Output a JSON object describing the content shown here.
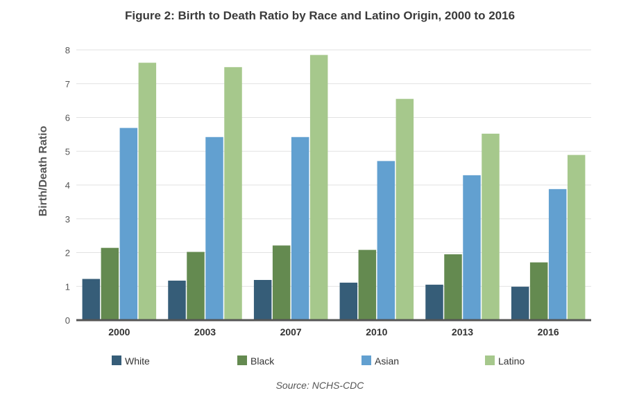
{
  "chart_data": {
    "type": "bar",
    "title": "Figure 2: Birth to Death Ratio by Race and Latino Origin, 2000 to 2016",
    "xlabel": "",
    "ylabel": "Birth/Death Ratio",
    "ylim": [
      0,
      8
    ],
    "yticks": [
      "0",
      "1",
      "2",
      "3",
      "4",
      "5",
      "6",
      "7",
      "8"
    ],
    "grid": true,
    "legend_position": "bottom",
    "categories": [
      "2000",
      "2003",
      "2007",
      "2010",
      "2013",
      "2016"
    ],
    "series": [
      {
        "name": "White",
        "color": "#365d78",
        "values": [
          1.22,
          1.17,
          1.19,
          1.11,
          1.05,
          0.99
        ]
      },
      {
        "name": "Black",
        "color": "#648a50",
        "values": [
          2.14,
          2.02,
          2.21,
          2.08,
          1.95,
          1.71
        ]
      },
      {
        "name": "Asian",
        "color": "#62a0d0",
        "values": [
          5.69,
          5.42,
          5.42,
          4.71,
          4.29,
          3.88
        ]
      },
      {
        "name": "Latino",
        "color": "#a6c88c",
        "values": [
          7.62,
          7.49,
          7.85,
          6.55,
          5.52,
          4.89
        ]
      }
    ],
    "source": "Source: NCHS-CDC"
  }
}
